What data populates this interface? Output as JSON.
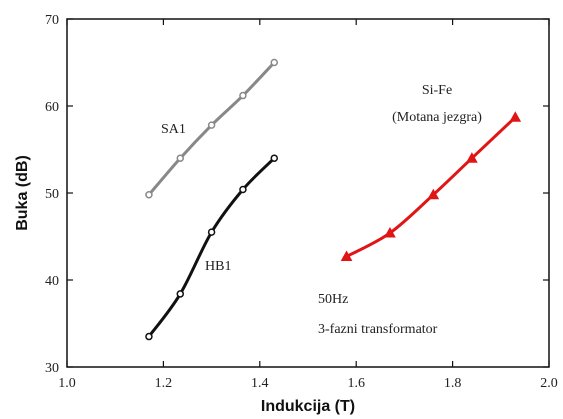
{
  "chart_data": {
    "type": "line",
    "xlabel": "Indukcija (T)",
    "ylabel": "Buka (dB)",
    "xlim": [
      1.0,
      2.0
    ],
    "ylim": [
      30,
      70
    ],
    "xticks": [
      1.0,
      1.2,
      1.4,
      1.6,
      1.8,
      2.0
    ],
    "xtick_labels": [
      "1.0",
      "1.2",
      "1.4",
      "1.6",
      "1.8",
      "2.0"
    ],
    "yticks": [
      30,
      40,
      50,
      60,
      70
    ],
    "ytick_labels": [
      "30",
      "40",
      "50",
      "60",
      "70"
    ],
    "grid": false,
    "legend": "none",
    "series": [
      {
        "name": "SA1",
        "color": "#888888",
        "marker": "circle",
        "x": [
          1.17,
          1.235,
          1.3,
          1.365,
          1.43
        ],
        "y": [
          49.8,
          54.0,
          57.8,
          61.2,
          65.0
        ]
      },
      {
        "name": "HB1",
        "color": "#111111",
        "marker": "circle",
        "x": [
          1.17,
          1.235,
          1.3,
          1.365,
          1.43
        ],
        "y": [
          33.5,
          38.4,
          45.5,
          50.4,
          54.0
        ]
      },
      {
        "name": "Si-Fe (Motana jezgra)",
        "color": "#e01515",
        "marker": "triangle",
        "x": [
          1.58,
          1.67,
          1.76,
          1.84,
          1.93
        ],
        "y": [
          42.7,
          45.4,
          49.8,
          54.0,
          58.7
        ]
      }
    ],
    "annotations": {
      "sa1": "SA1",
      "hb1": "HB1",
      "sife_line1": "Si-Fe",
      "sife_line2": "(Motana jezgra)",
      "freq": "50Hz",
      "transformer": "3-fazni transformator"
    }
  }
}
